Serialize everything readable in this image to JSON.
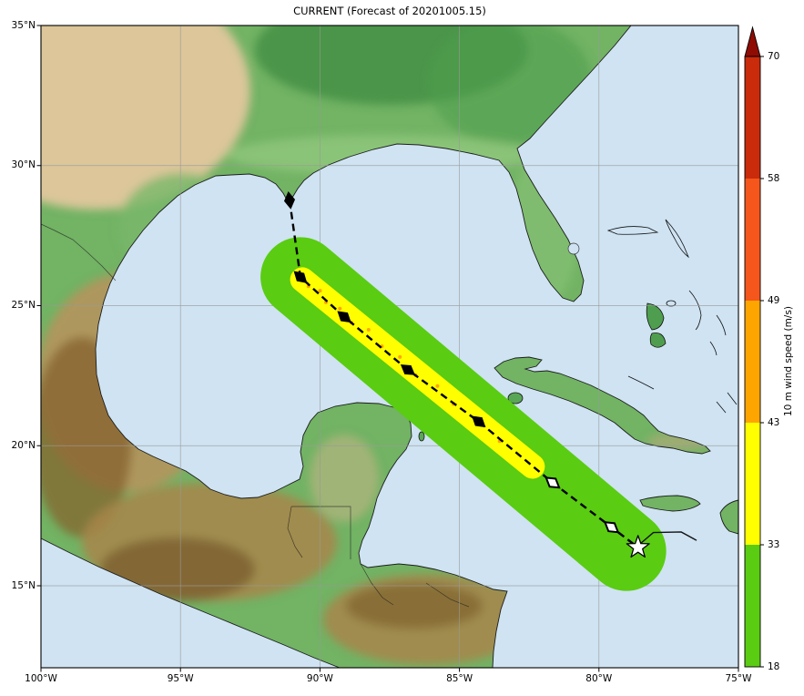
{
  "figure": {
    "title": "CURRENT (Forecast of 20201005.15)"
  },
  "map": {
    "ocean_color": "#cfe3f2",
    "x_ticks": [
      {
        "label": "100°W",
        "lon": -100,
        "grid": false
      },
      {
        "label": "95°W",
        "lon": -95,
        "grid": true
      },
      {
        "label": "90°W",
        "lon": -90,
        "grid": true
      },
      {
        "label": "85°W",
        "lon": -85,
        "grid": true
      },
      {
        "label": "80°W",
        "lon": -80,
        "grid": true
      },
      {
        "label": "75°W",
        "lon": -75,
        "grid": false
      }
    ],
    "y_ticks": [
      {
        "label": "35°N",
        "lat": 35,
        "grid": false
      },
      {
        "label": "30°N",
        "lat": 30,
        "grid": true
      },
      {
        "label": "25°N",
        "lat": 25,
        "grid": true
      },
      {
        "label": "20°N",
        "lat": 20,
        "grid": true
      },
      {
        "label": "15°N",
        "lat": 15,
        "grid": true
      }
    ]
  },
  "colorbar": {
    "label": "10 m wind speed (m/s)",
    "tick_labels": [
      "18",
      "33",
      "43",
      "49",
      "58",
      "70"
    ],
    "segments": [
      {
        "min": 18,
        "max": 33,
        "color": "#5acc12"
      },
      {
        "min": 33,
        "max": 43,
        "color": "#ffff00"
      },
      {
        "min": 43,
        "max": 49,
        "color": "#ffa500"
      },
      {
        "min": 49,
        "max": 58,
        "color": "#f4561c"
      },
      {
        "min": 58,
        "max": 70,
        "color": "#c92b0b"
      }
    ],
    "over_color": "#8e0c04"
  },
  "chart_data": {
    "type": "map-track",
    "title": "CURRENT (Forecast of 20201005.15)",
    "forecast_track": [
      {
        "lat": 28.76,
        "lon": -91.09,
        "marker": "filled"
      },
      {
        "lat": 26.02,
        "lon": -90.7,
        "marker": "filled"
      },
      {
        "lat": 24.6,
        "lon": -89.13,
        "marker": "filled"
      },
      {
        "lat": 22.71,
        "lon": -86.85,
        "marker": "filled"
      },
      {
        "lat": 20.86,
        "lon": -84.31,
        "marker": "filled"
      },
      {
        "lat": 18.68,
        "lon": -81.66,
        "marker": "open"
      },
      {
        "lat": 17.09,
        "lon": -79.55,
        "marker": "open"
      },
      {
        "lat": 16.37,
        "lon": -78.6,
        "marker": "star"
      }
    ],
    "observed_track": [
      {
        "lat": 16.5,
        "lon": -78.52
      },
      {
        "lat": 16.9,
        "lon": -78.05
      },
      {
        "lat": 16.92,
        "lon": -77.05
      },
      {
        "lat": 16.62,
        "lon": -76.5
      }
    ],
    "wind_swath": {
      "outer": {
        "color": "#5acc12",
        "radius_deg": 1.43,
        "from": {
          "lat": 26.02,
          "lon": -90.7
        },
        "to": {
          "lat": 16.24,
          "lon": -79.02
        }
      },
      "inner": {
        "color": "#ffff00",
        "radius_deg": 0.44,
        "from": {
          "lat": 25.93,
          "lon": -90.63
        },
        "to": {
          "lat": 19.26,
          "lon": -82.38
        }
      },
      "core_specks": {
        "color": "#ffa500",
        "points": [
          [
            0.03,
            0.05
          ],
          [
            0.07,
            -0.09
          ],
          [
            0.11,
            0.1
          ],
          [
            0.16,
            -0.04
          ],
          [
            0.22,
            0.09
          ],
          [
            0.28,
            -0.1
          ],
          [
            0.35,
            0.06
          ],
          [
            0.42,
            -0.05
          ],
          [
            0.5,
            0.1
          ],
          [
            0.58,
            -0.09
          ],
          [
            0.66,
            0.05
          ],
          [
            0.75,
            -0.07
          ],
          [
            0.86,
            0.04
          ]
        ]
      }
    }
  }
}
